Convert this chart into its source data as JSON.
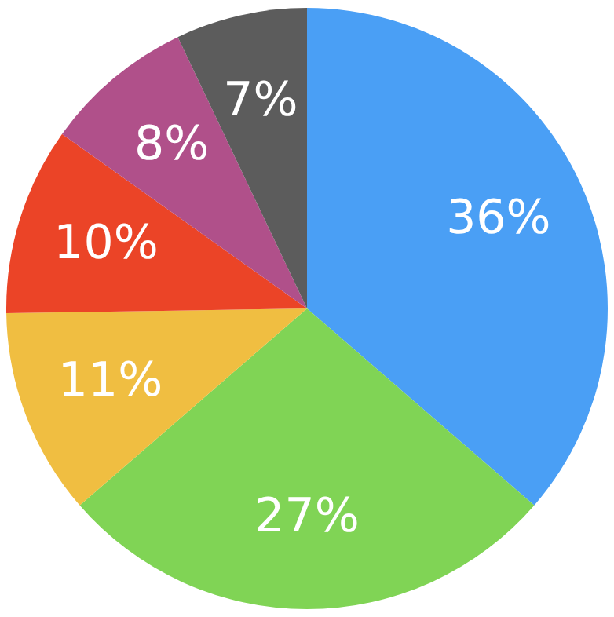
{
  "chart_data": {
    "type": "pie",
    "categories": [
      null,
      null,
      null,
      null,
      null,
      null
    ],
    "values": [
      36,
      27,
      11,
      10,
      8,
      7
    ],
    "colors": [
      "#4a9ff5",
      "#80d455",
      "#f0be41",
      "#eb4427",
      "#b0508a",
      "#5c5c5c"
    ],
    "value_labels": [
      "36%",
      "27%",
      "11%",
      "10%",
      "8%",
      "7%"
    ],
    "legend": false
  }
}
